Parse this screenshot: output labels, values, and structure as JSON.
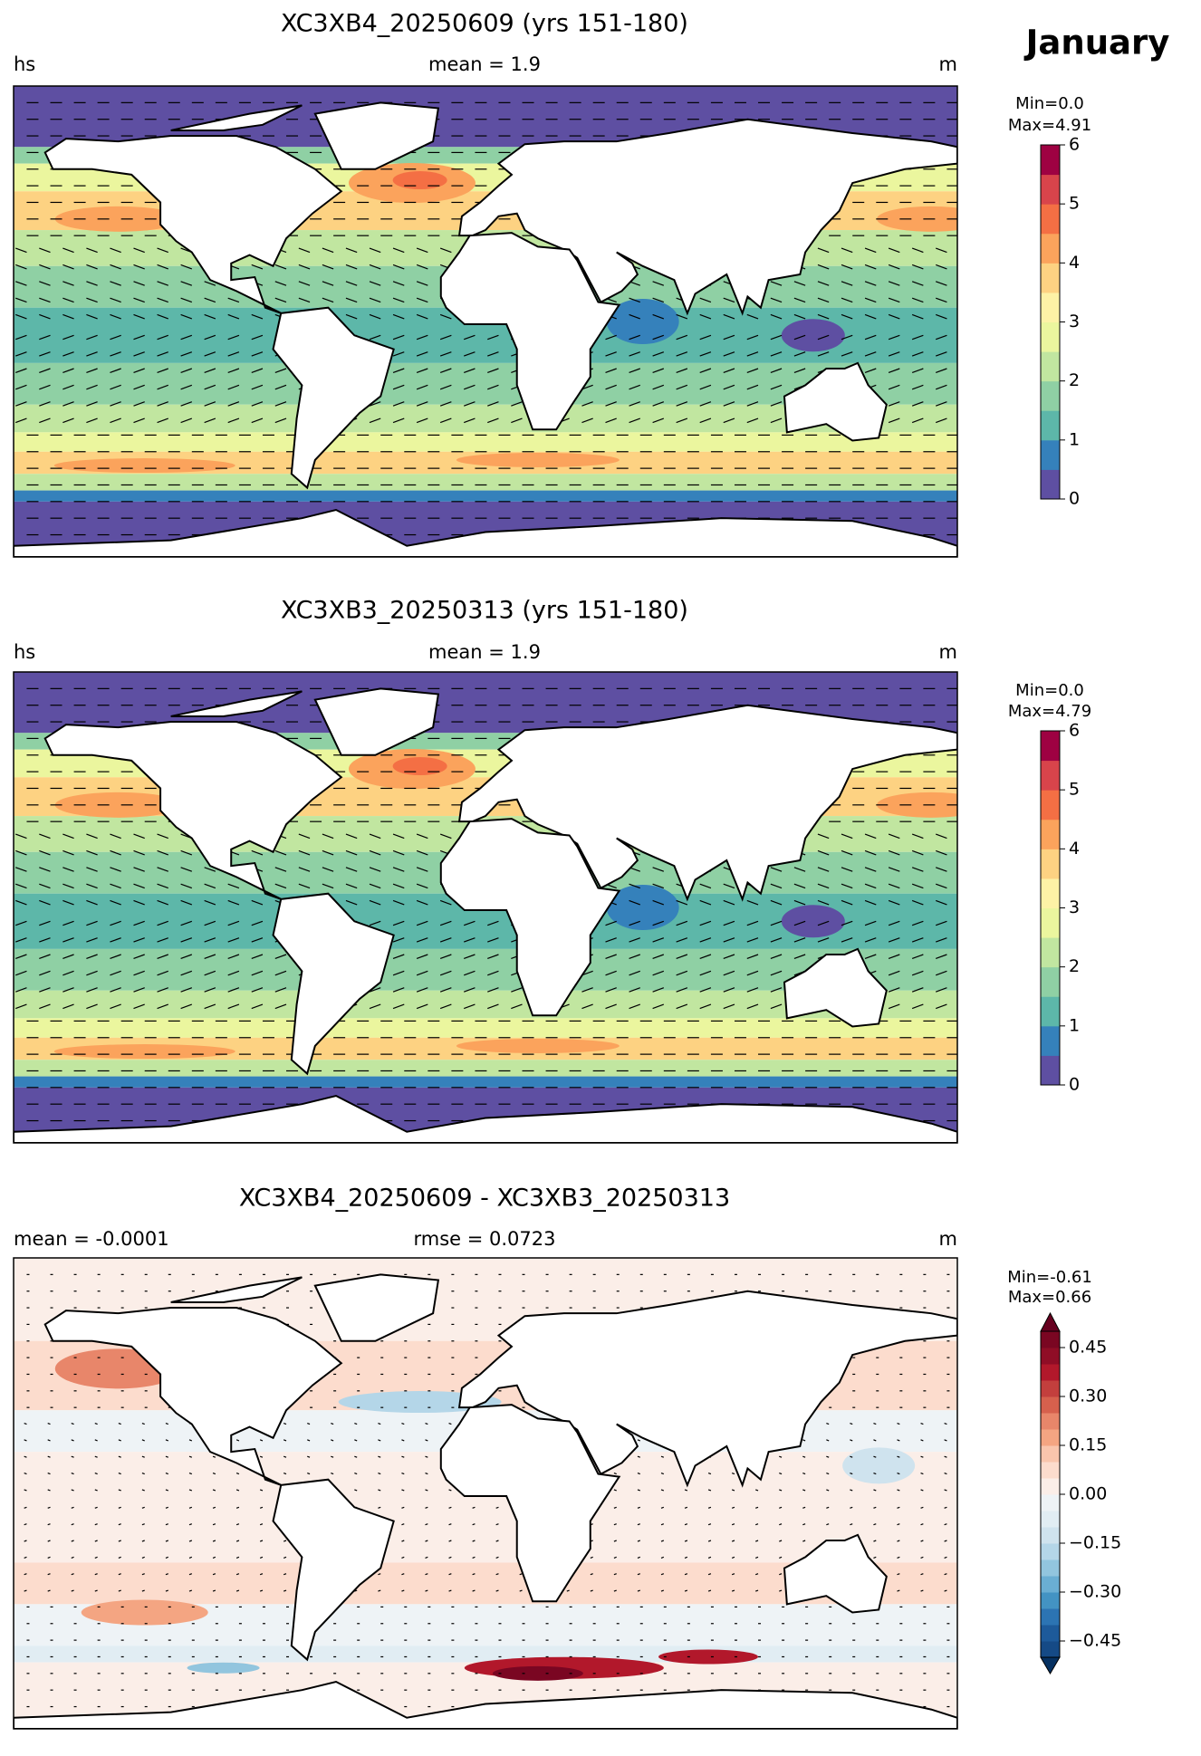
{
  "figure_title": "January",
  "panels": [
    {
      "title": "XC3XB4_20250609 (yrs 151-180)",
      "left_label": "hs",
      "center_label": "mean = 1.9",
      "right_label": "m",
      "min_label": "Min=0.0",
      "max_label": "Max=4.91",
      "colorbar": {
        "lim": [
          0,
          6
        ],
        "ticks": [
          0,
          1,
          2,
          3,
          4,
          5,
          6
        ],
        "colors": [
          "#5e4fa2",
          "#3581bb",
          "#5db7a9",
          "#8fd0a4",
          "#c1e6a0",
          "#ebf69e",
          "#fdf2a6",
          "#fdd282",
          "#fba35c",
          "#f46f44",
          "#d8444b",
          "#9e0142"
        ]
      }
    },
    {
      "title": "XC3XB3_20250313 (yrs 151-180)",
      "left_label": "hs",
      "center_label": "mean = 1.9",
      "right_label": "m",
      "min_label": "Min=0.0",
      "max_label": "Max=4.79",
      "colorbar": {
        "lim": [
          0,
          6
        ],
        "ticks": [
          0,
          1,
          2,
          3,
          4,
          5,
          6
        ],
        "colors": [
          "#5e4fa2",
          "#3581bb",
          "#5db7a9",
          "#8fd0a4",
          "#c1e6a0",
          "#ebf69e",
          "#fdf2a6",
          "#fdd282",
          "#fba35c",
          "#f46f44",
          "#d8444b",
          "#9e0142"
        ]
      }
    },
    {
      "title": "XC3XB4_20250609 - XC3XB3_20250313",
      "left_label": "mean = -0.0001",
      "center_label": "rmse = 0.0723",
      "right_label": "m",
      "min_label": "Min=-0.61",
      "max_label": "Max=0.66",
      "colorbar": {
        "lim": [
          -0.5,
          0.5
        ],
        "ticks": [
          {
            "value": -0.45,
            "label": "−0.45"
          },
          {
            "value": -0.3,
            "label": "−0.30"
          },
          {
            "value": -0.15,
            "label": "−0.15"
          },
          {
            "value": 0,
            "label": "0.00"
          },
          0.15,
          {
            "value": 0.3,
            "label": "0.30"
          },
          0.45
        ],
        "colors": [
          "#154a86",
          "#1d5a9a",
          "#2c74b3",
          "#4393c3",
          "#6aaed3",
          "#92c5de",
          "#b4d6e8",
          "#cfe3ee",
          "#e1edf3",
          "#eef3f6",
          "#fbeee8",
          "#fcdccd",
          "#f9c5ad",
          "#f4a582",
          "#e8866a",
          "#d6604d",
          "#c33f3d",
          "#b2182b",
          "#8f0d26",
          "#7a0622"
        ],
        "extend_colors": [
          "#053061",
          "#67001f"
        ]
      }
    }
  ]
}
